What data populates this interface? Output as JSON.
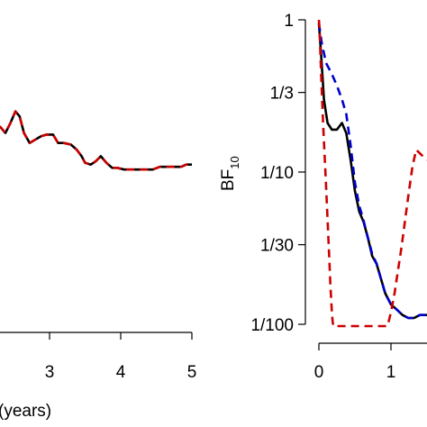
{
  "chart_data": [
    {
      "type": "line",
      "title": "",
      "xlabel": "(years)",
      "ylabel": "",
      "xlim": [
        2.3,
        5.0
      ],
      "ylim": [
        0,
        1
      ],
      "xticks": [
        3,
        4,
        5
      ],
      "xtick_labels": [
        "3",
        "4",
        "5"
      ],
      "grid": false,
      "legend": "none",
      "series": [
        {
          "style": "solid",
          "color": "#000000",
          "x": [
            2.3,
            2.38,
            2.45,
            2.52,
            2.58,
            2.64,
            2.72,
            2.8,
            2.88,
            2.96,
            3.05,
            3.12,
            3.2,
            3.3,
            3.38,
            3.45,
            3.5,
            3.58,
            3.65,
            3.72,
            3.8,
            3.88,
            3.95,
            4.05,
            4.15,
            4.25,
            4.35,
            4.45,
            4.55,
            4.65,
            4.75,
            4.85,
            4.92,
            5.0
          ],
          "y": [
            0.62,
            0.6,
            0.63,
            0.665,
            0.65,
            0.6,
            0.57,
            0.58,
            0.59,
            0.595,
            0.595,
            0.57,
            0.57,
            0.565,
            0.55,
            0.53,
            0.51,
            0.505,
            0.515,
            0.53,
            0.51,
            0.495,
            0.495,
            0.49,
            0.49,
            0.49,
            0.49,
            0.49,
            0.498,
            0.498,
            0.498,
            0.498,
            0.505,
            0.505
          ]
        },
        {
          "style": "dashed",
          "color": "#cc0000",
          "x": [
            2.3,
            2.38,
            2.45,
            2.52,
            2.58,
            2.64,
            2.72,
            2.8,
            2.88,
            2.96,
            3.05,
            3.12,
            3.2,
            3.3,
            3.38,
            3.45,
            3.5,
            3.58,
            3.65,
            3.72,
            3.8,
            3.88,
            3.95,
            4.05,
            4.15,
            4.25,
            4.35,
            4.45,
            4.55,
            4.65,
            4.75,
            4.85,
            4.92,
            5.0
          ],
          "y": [
            0.62,
            0.6,
            0.63,
            0.665,
            0.65,
            0.6,
            0.57,
            0.58,
            0.59,
            0.595,
            0.595,
            0.57,
            0.57,
            0.565,
            0.55,
            0.53,
            0.51,
            0.505,
            0.515,
            0.53,
            0.51,
            0.495,
            0.495,
            0.49,
            0.49,
            0.49,
            0.49,
            0.49,
            0.498,
            0.498,
            0.498,
            0.498,
            0.505,
            0.505
          ]
        }
      ]
    },
    {
      "type": "line",
      "title": "",
      "xlabel": "",
      "ylabel": "BF",
      "ylabel_sub": "10",
      "xlim": [
        0,
        1.5
      ],
      "ylim": [
        0.01,
        1
      ],
      "yscale": "log",
      "xticks": [
        0,
        1
      ],
      "xtick_labels": [
        "0",
        "1"
      ],
      "yticks": [
        1,
        0.3333,
        0.1,
        0.03333,
        0.01
      ],
      "ytick_labels": [
        "1",
        "1/3",
        "1/10",
        "1/30",
        "1/100"
      ],
      "grid": false,
      "legend": "none",
      "series": [
        {
          "style": "solid",
          "color": "#000000",
          "x": [
            0.0,
            0.03,
            0.07,
            0.12,
            0.18,
            0.25,
            0.32,
            0.38,
            0.44,
            0.5,
            0.56,
            0.62,
            0.68,
            0.74,
            0.8,
            0.86,
            0.92,
            1.0,
            1.08,
            1.16,
            1.24,
            1.32,
            1.4,
            1.5
          ],
          "y": [
            0.95,
            0.6,
            0.3,
            0.21,
            0.19,
            0.19,
            0.21,
            0.18,
            0.12,
            0.075,
            0.055,
            0.047,
            0.037,
            0.028,
            0.025,
            0.02,
            0.016,
            0.0135,
            0.0125,
            0.0115,
            0.011,
            0.011,
            0.0115,
            0.0115
          ]
        },
        {
          "style": "dashed",
          "color": "#0000cc",
          "x": [
            0.0,
            0.04,
            0.1,
            0.18,
            0.25,
            0.32,
            0.38,
            0.44,
            0.5,
            0.56,
            0.62,
            0.68,
            0.74,
            0.8,
            0.86,
            0.92,
            1.0,
            1.08,
            1.16,
            1.24,
            1.32,
            1.4,
            1.5
          ],
          "y": [
            0.95,
            0.7,
            0.52,
            0.44,
            0.37,
            0.3,
            0.24,
            0.15,
            0.085,
            0.06,
            0.048,
            0.037,
            0.029,
            0.025,
            0.02,
            0.016,
            0.0135,
            0.0125,
            0.0115,
            0.011,
            0.011,
            0.0115,
            0.0115
          ]
        },
        {
          "style": "dashed",
          "color": "#cc0000",
          "x": [
            0.0,
            0.01,
            0.03,
            0.06,
            0.1,
            0.14,
            0.16,
            0.18,
            0.19,
            0.2,
            0.95,
            0.97,
            1.0,
            1.05,
            1.1,
            1.15,
            1.2,
            1.25,
            1.3,
            1.35,
            1.42,
            1.5
          ],
          "y": [
            1.0,
            0.85,
            0.45,
            0.2,
            0.08,
            0.03,
            0.018,
            0.012,
            0.0105,
            0.0095,
            0.0095,
            0.0105,
            0.012,
            0.016,
            0.023,
            0.033,
            0.05,
            0.075,
            0.11,
            0.14,
            0.13,
            0.12
          ]
        }
      ]
    }
  ]
}
